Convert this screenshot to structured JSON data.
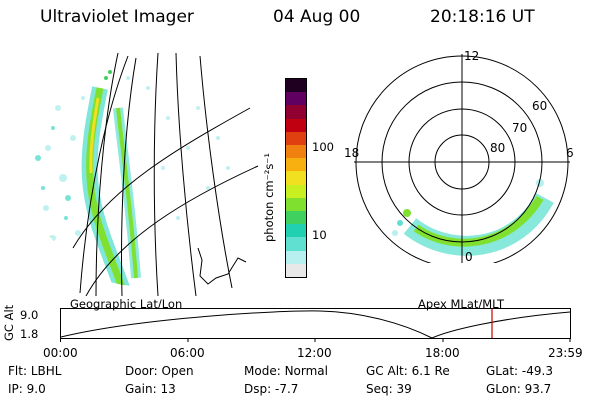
{
  "header": {
    "instrument": "Ultraviolet Imager",
    "date": "04 Aug 00",
    "time": "20:18:16 UT"
  },
  "colorbar": {
    "unit_label": "photon cm⁻²s⁻¹",
    "ticks": [
      "100",
      "10"
    ],
    "colors": [
      "#e8e8e8",
      "#b8f0f0",
      "#60e0d0",
      "#20d0b0",
      "#40d060",
      "#80e030",
      "#c8f020",
      "#f0e020",
      "#f8b010",
      "#f08010",
      "#e04010",
      "#c00010",
      "#900030",
      "#600060",
      "#200020"
    ]
  },
  "left_panel": {
    "caption": "Geographic Lat/Lon"
  },
  "right_panel": {
    "caption": "Apex MLat/MLT",
    "mlt_labels": [
      "12",
      "18",
      "6",
      "0"
    ],
    "lat_labels": [
      "60",
      "70",
      "80"
    ]
  },
  "timeline": {
    "ylabel": "GC Alt",
    "y_ticks": [
      "9.0",
      "1.8"
    ],
    "x_ticks": [
      "00:00",
      "06:00",
      "12:00",
      "18:00",
      "23:59"
    ],
    "cursor_color": "#cc0000"
  },
  "status": {
    "row1": [
      {
        "key": "Flt:",
        "val": "LBHL"
      },
      {
        "key": "Door:",
        "val": "Open"
      },
      {
        "key": "Mode:",
        "val": "Normal"
      },
      {
        "key": "GC Alt:",
        "val": "6.1 Re"
      },
      {
        "key": "GLat:",
        "val": "-49.3"
      }
    ],
    "row2": [
      {
        "key": "IP:",
        "val": "9.0"
      },
      {
        "key": "Gain:",
        "val": "13"
      },
      {
        "key": "Dsp:",
        "val": "-7.7"
      },
      {
        "key": "Seq:",
        "val": "39"
      },
      {
        "key": "GLon:",
        "val": "93.7"
      }
    ]
  }
}
